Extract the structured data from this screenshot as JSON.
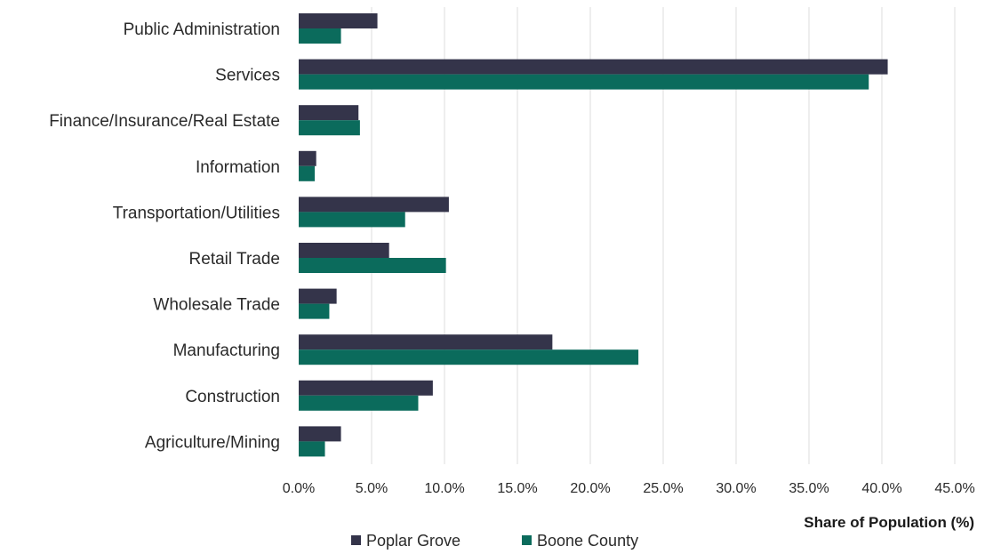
{
  "chart_data": {
    "type": "bar",
    "orientation": "horizontal",
    "categories": [
      "Public Administration",
      "Services",
      "Finance/Insurance/Real Estate",
      "Information",
      "Transportation/Utilities",
      "Retail Trade",
      "Wholesale Trade",
      "Manufacturing",
      "Construction",
      "Agriculture/Mining"
    ],
    "series": [
      {
        "name": "Poplar Grove",
        "color": "#34344a",
        "values": [
          5.4,
          40.4,
          4.1,
          1.2,
          10.3,
          6.2,
          2.6,
          17.4,
          9.2,
          2.9
        ]
      },
      {
        "name": "Boone County",
        "color": "#0b6b5c",
        "values": [
          2.9,
          39.1,
          4.2,
          1.1,
          7.3,
          10.1,
          2.1,
          23.3,
          8.2,
          1.8
        ]
      }
    ],
    "xlim": [
      0,
      45
    ],
    "xticks": [
      0,
      5,
      10,
      15,
      20,
      25,
      30,
      35,
      40,
      45
    ],
    "xtick_labels": [
      "0.0%",
      "5.0%",
      "10.0%",
      "15.0%",
      "20.0%",
      "25.0%",
      "30.0%",
      "35.0%",
      "40.0%",
      "45.0%"
    ],
    "xlabel": "Share of Population (%)",
    "title": "",
    "grid": "vertical",
    "legend": "bottom-center"
  }
}
